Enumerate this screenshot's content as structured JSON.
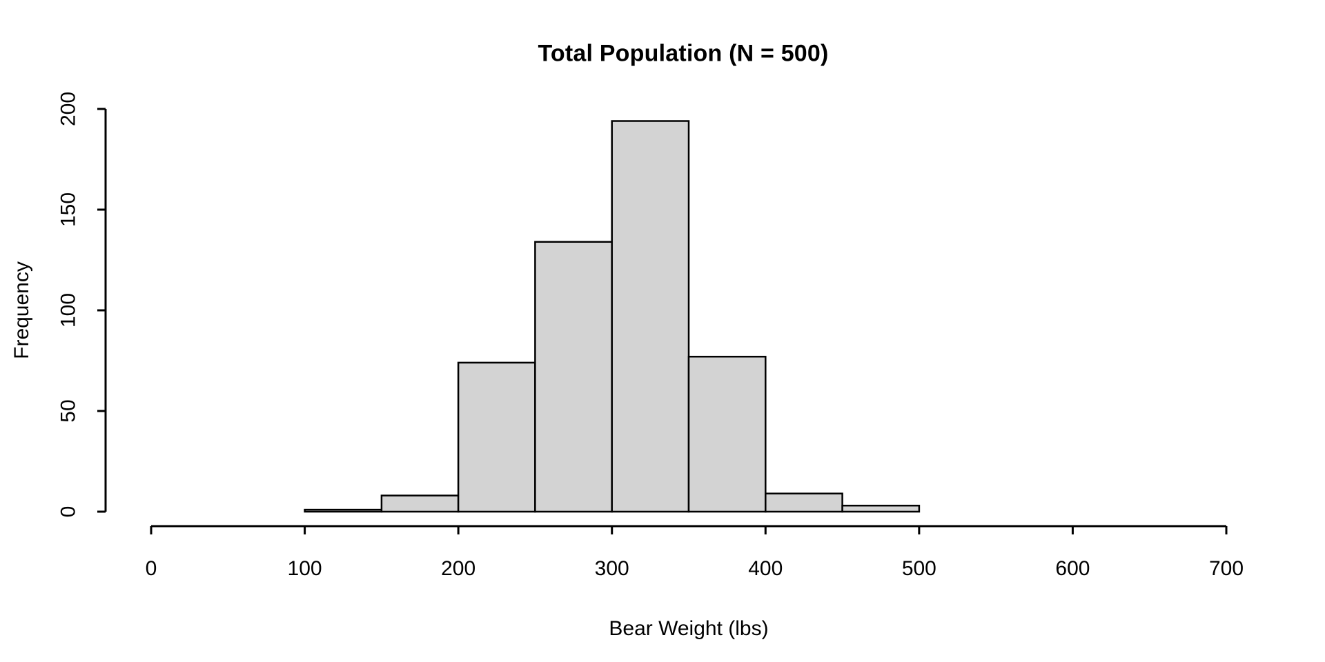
{
  "page": {
    "background": "#ffffff"
  },
  "chart_data": {
    "type": "bar",
    "subtype": "histogram",
    "title": "Total Population (N = 500)",
    "xlabel": "Bear Weight (lbs)",
    "ylabel": "Frequency",
    "bin_edges": [
      100,
      150,
      200,
      250,
      300,
      350,
      400,
      450,
      500
    ],
    "frequencies": [
      1,
      8,
      74,
      134,
      194,
      77,
      9,
      3
    ],
    "xticks": [
      0,
      100,
      200,
      300,
      400,
      500,
      600,
      700
    ],
    "yticks": [
      0,
      50,
      100,
      150,
      200
    ],
    "xlim": [
      0,
      700
    ],
    "ylim": [
      0,
      200
    ],
    "grid": false,
    "legend": null,
    "colors": {
      "bar_fill": "#D3D3D3",
      "bar_stroke": "#000000",
      "axis": "#000000",
      "text": "#000000"
    }
  }
}
